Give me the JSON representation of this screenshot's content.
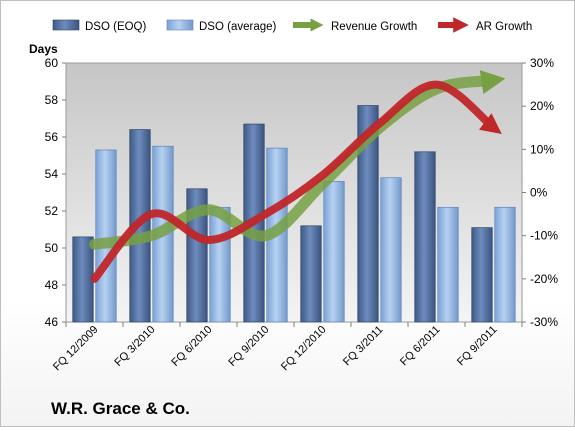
{
  "company_label": "W.R. Grace & Co.",
  "chart_data": {
    "type": "bar",
    "categories": [
      "FQ 12/2009",
      "FQ 3/2010",
      "FQ 6/2010",
      "FQ 9/2010",
      "FQ 12/2010",
      "FQ 3/2011",
      "FQ 6/2011",
      "FQ 9/2011"
    ],
    "ylabel": "Days",
    "ylim": [
      46,
      60
    ],
    "y_ticks": [
      "46",
      "48",
      "50",
      "52",
      "54",
      "56",
      "58",
      "60"
    ],
    "y2lim": [
      -0.3,
      0.3
    ],
    "y2_ticks": [
      "-30%",
      "-20%",
      "-10%",
      "0%",
      "10%",
      "20%",
      "30%"
    ],
    "grid": false,
    "legend_position": "top",
    "series": [
      {
        "name": "DSO (EOQ)",
        "kind": "bar",
        "axis": "left",
        "color": "#4f6fa0",
        "values": [
          50.6,
          56.4,
          53.2,
          56.7,
          51.2,
          57.7,
          55.2,
          51.1
        ]
      },
      {
        "name": "DSO (average)",
        "kind": "bar",
        "axis": "left",
        "color": "#8eb4e3",
        "values": [
          55.3,
          55.5,
          52.2,
          55.4,
          53.6,
          53.8,
          52.2,
          52.2
        ]
      },
      {
        "name": "Revenue Growth",
        "kind": "line",
        "axis": "right",
        "color": "#77a043",
        "values": [
          -0.12,
          -0.1,
          -0.04,
          -0.1,
          0.02,
          0.15,
          0.24,
          0.26
        ]
      },
      {
        "name": "AR Growth",
        "kind": "line",
        "axis": "right",
        "color": "#c0262a",
        "values": [
          -0.2,
          -0.05,
          -0.11,
          -0.05,
          0.04,
          0.16,
          0.25,
          0.15
        ]
      }
    ]
  }
}
